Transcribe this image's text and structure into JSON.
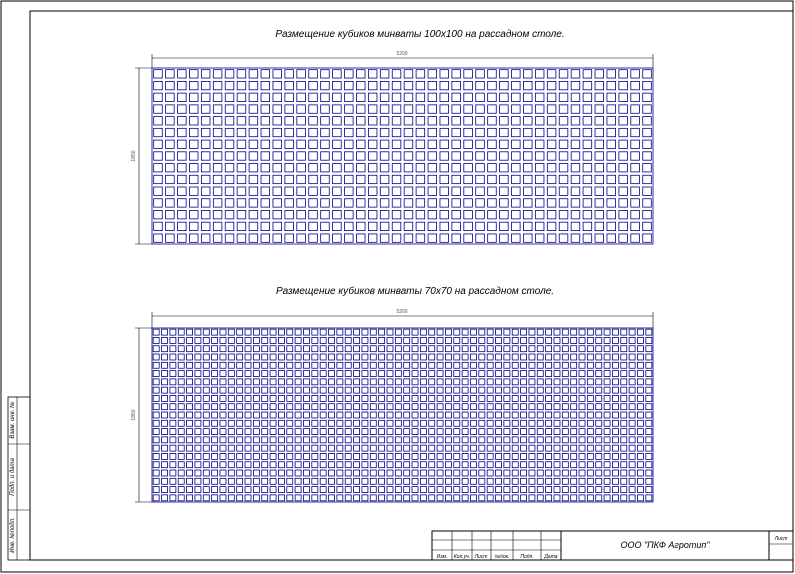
{
  "grid1": {
    "title": "Размещение кубиков минваты 100х100 на рассадном столе.",
    "width_label": "5200",
    "height_label": "1850",
    "cols": 42,
    "rows": 15
  },
  "grid2": {
    "title": "Размещение кубиков минваты 70х70 на рассадном столе.",
    "width_label": "5200",
    "height_label": "1850",
    "cols": 60,
    "rows": 21
  },
  "side_labels": [
    "Взам. инв. №",
    "Подп. и дата",
    "Инв. №подл."
  ],
  "title_block": {
    "columns": [
      "Изм.",
      "Кол.уч.",
      "Лист",
      "№док.",
      "Подп.",
      "Дата"
    ],
    "org": "ООО \"ПКФ Агротип\"",
    "sheet_label": "Лист"
  },
  "colors": {
    "grid": "#00008b",
    "frame": "#000000"
  }
}
